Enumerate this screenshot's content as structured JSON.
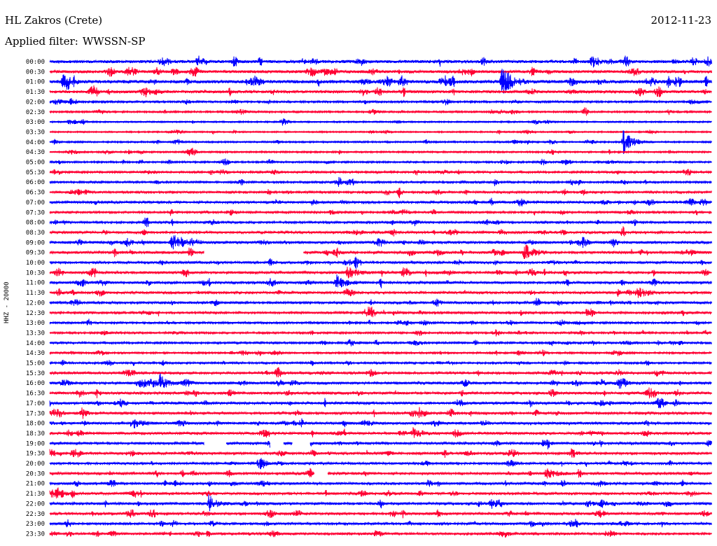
{
  "header": {
    "station": "HL Zakros (Crete)",
    "date": "2012-11-23",
    "filter_label": "Applied filter:",
    "filter_value": "WWSSN-SP"
  },
  "chart_data": {
    "type": "line",
    "chart_kind": "helicorder",
    "ylabel": "HHZ - 20000",
    "row_labels": [
      "00:00",
      "00:30",
      "01:00",
      "01:30",
      "02:00",
      "02:30",
      "03:00",
      "03:30",
      "04:00",
      "04:30",
      "05:00",
      "05:30",
      "06:00",
      "06:30",
      "07:00",
      "07:30",
      "08:00",
      "08:30",
      "09:00",
      "09:30",
      "10:00",
      "10:30",
      "11:00",
      "11:30",
      "12:00",
      "12:30",
      "13:00",
      "13:30",
      "14:00",
      "14:30",
      "15:00",
      "15:30",
      "16:00",
      "16:30",
      "17:00",
      "17:30",
      "18:00",
      "18:30",
      "19:00",
      "19:30",
      "20:00",
      "20:30",
      "21:00",
      "21:30",
      "22:00",
      "22:30",
      "23:00",
      "23:30"
    ],
    "series_colors": [
      "#0000ff",
      "#ff0033"
    ],
    "row_noise_level": [
      0.7,
      0.6,
      0.8,
      0.6,
      0.3,
      0.25,
      0.15,
      0.15,
      0.2,
      0.2,
      0.25,
      0.3,
      0.3,
      0.35,
      0.4,
      0.3,
      0.35,
      0.4,
      0.55,
      0.55,
      0.45,
      0.5,
      0.45,
      0.45,
      0.4,
      0.35,
      0.3,
      0.3,
      0.3,
      0.25,
      0.3,
      0.4,
      0.5,
      0.5,
      0.5,
      0.45,
      0.5,
      0.5,
      0.45,
      0.45,
      0.4,
      0.45,
      0.45,
      0.45,
      0.5,
      0.45,
      0.4,
      0.4
    ],
    "events": [
      {
        "row": 2,
        "minute": 20.5,
        "amplitude": 1.6
      },
      {
        "row": 8,
        "minute": 26.0,
        "amplitude": 1.2
      },
      {
        "row": 19,
        "minute": 21.5,
        "amplitude": 0.9
      },
      {
        "row": 18,
        "minute": 5.5,
        "amplitude": 0.6
      },
      {
        "row": 22,
        "minute": 13.0,
        "amplitude": 0.7
      },
      {
        "row": 21,
        "minute": 13.5,
        "amplitude": 0.6
      },
      {
        "row": 32,
        "minute": 5.0,
        "amplitude": 0.6
      },
      {
        "row": 36,
        "minute": 3.8,
        "amplitude": 0.5
      },
      {
        "row": 37,
        "minute": 16.5,
        "amplitude": 0.5
      },
      {
        "row": 41,
        "minute": 22.5,
        "amplitude": 0.6
      },
      {
        "row": 44,
        "minute": 7.2,
        "amplitude": 0.6
      }
    ],
    "gaps": [
      {
        "row": 19,
        "from_minute": 7.0,
        "to_minute": 11.5
      },
      {
        "row": 38,
        "from_minute": 7.0,
        "to_minute": 8.0
      },
      {
        "row": 38,
        "from_minute": 10.0,
        "to_minute": 10.6
      },
      {
        "row": 38,
        "from_minute": 11.0,
        "to_minute": 11.8
      },
      {
        "row": 41,
        "from_minute": 12.0,
        "to_minute": 12.6
      }
    ]
  }
}
